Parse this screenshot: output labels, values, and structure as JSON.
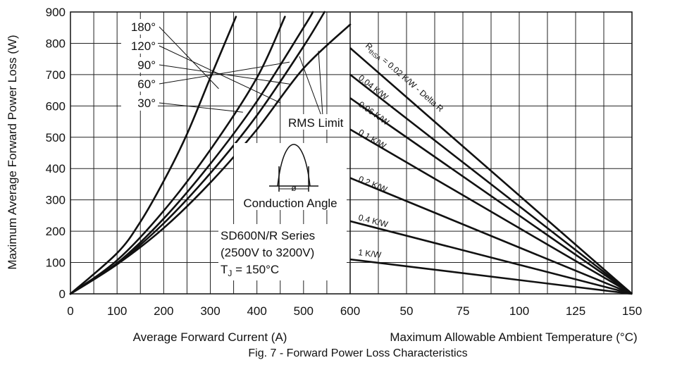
{
  "caption": "Fig. 7 - Forward Power Loss Characteristics",
  "chart_data": [
    {
      "type": "line",
      "xlabel": "Average Forward Current (A)",
      "ylabel": "Maximum Average Forward Power Loss (W)",
      "xlim": [
        0,
        600
      ],
      "ylim": [
        0,
        900
      ],
      "xticks": [
        "0",
        "100",
        "200",
        "300",
        "400",
        "500",
        "600"
      ],
      "yticks": [
        "0",
        "100",
        "200",
        "300",
        "400",
        "500",
        "600",
        "700",
        "800",
        "900"
      ],
      "grid": true,
      "series": [
        {
          "name": "30°",
          "points": [
            [
              0,
              0
            ],
            [
              100,
              130
            ],
            [
              150,
              230
            ],
            [
              200,
              360
            ],
            [
              250,
              510
            ],
            [
              300,
              690
            ],
            [
              355,
              885
            ]
          ]
        },
        {
          "name": "60°",
          "points": [
            [
              0,
              0
            ],
            [
              100,
              107
            ],
            [
              200,
              265
            ],
            [
              300,
              460
            ],
            [
              400,
              690
            ],
            [
              460,
              885
            ]
          ]
        },
        {
          "name": "90°",
          "points": [
            [
              0,
              0
            ],
            [
              100,
              98
            ],
            [
              200,
              240
            ],
            [
              300,
              415
            ],
            [
              400,
              615
            ],
            [
              500,
              850
            ],
            [
              520,
              900
            ]
          ]
        },
        {
          "name": "120°",
          "points": [
            [
              0,
              0
            ],
            [
              100,
              96
            ],
            [
              200,
              225
            ],
            [
              300,
              385
            ],
            [
              400,
              570
            ],
            [
              500,
              790
            ],
            [
              545,
              900
            ]
          ]
        },
        {
          "name": "180°",
          "points": [
            [
              0,
              0
            ],
            [
              100,
              94
            ],
            [
              200,
              210
            ],
            [
              300,
              355
            ],
            [
              400,
              525
            ],
            [
              500,
              720
            ],
            [
              600,
              860
            ]
          ]
        }
      ],
      "rms_limit_label": "RMS Limit",
      "waveform_label": "Conduction Angle",
      "phi_symbol": "ø",
      "annotations": [
        "SD600N/R Series",
        "(2500V to 3200V)"
      ],
      "tj": {
        "prefix": "T",
        "sub": "J",
        "suffix": " = 150°C"
      }
    },
    {
      "type": "line",
      "xlabel": "Maximum Allowable Ambient Temperature (°C)",
      "xlim": [
        25,
        150
      ],
      "ylim": [
        0,
        900
      ],
      "xticks": [
        "50",
        "75",
        "100",
        "125",
        "150"
      ],
      "grid": true,
      "series": [
        {
          "name": "= 0.02 K/W - Delta R",
          "points": [
            [
              25,
              785
            ],
            [
              150,
              0
            ]
          ]
        },
        {
          "name": "0.04 K/W",
          "points": [
            [
              25,
              700
            ],
            [
              150,
              0
            ]
          ]
        },
        {
          "name": "0.06 K/W",
          "points": [
            [
              25,
              625
            ],
            [
              150,
              0
            ]
          ]
        },
        {
          "name": "0.1 K/W",
          "points": [
            [
              25,
              525
            ],
            [
              150,
              0
            ]
          ]
        },
        {
          "name": "0.2 K/W",
          "points": [
            [
              25,
              370
            ],
            [
              150,
              0
            ]
          ]
        },
        {
          "name": "0.4 K/W",
          "points": [
            [
              25,
              232
            ],
            [
              150,
              0
            ]
          ]
        },
        {
          "name": "1 K/W",
          "points": [
            [
              25,
              110
            ],
            [
              150,
              0
            ]
          ]
        }
      ],
      "rth_symbol": {
        "main": "R",
        "sub": "thSA"
      }
    }
  ]
}
